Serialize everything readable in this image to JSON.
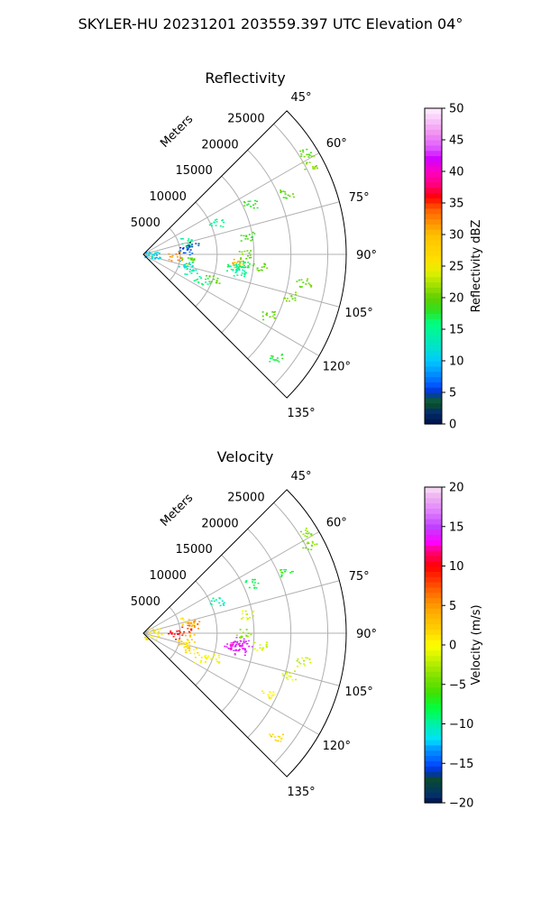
{
  "figure_title": "SKYLER-HU  20231201  203559.397 UTC Elevation 04°",
  "chart_data": [
    {
      "type": "polar-sector-scatter",
      "title": "Reflectivity",
      "radial_label": "Meters",
      "r_ticks": [
        "5000",
        "10000",
        "15000",
        "20000",
        "25000"
      ],
      "r_max": 27500,
      "theta_range_deg": [
        45,
        135
      ],
      "theta_ticks": [
        "45°",
        "60°",
        "75°",
        "90°",
        "105°",
        "120°",
        "135°"
      ],
      "grid": true,
      "colorbar": {
        "label": "Reflectivity dBZ",
        "range": [
          0,
          50
        ],
        "ticks": [
          "0",
          "5",
          "10",
          "15",
          "20",
          "25",
          "30",
          "35",
          "40",
          "45",
          "50"
        ]
      },
      "clusters": [
        {
          "az": 98,
          "r": 12000,
          "value": 16
        },
        {
          "az": 98,
          "r": 12800,
          "value": 14
        },
        {
          "az": 100,
          "r": 13200,
          "value": 15
        },
        {
          "az": 96,
          "r": 13800,
          "value": 17
        },
        {
          "az": 95,
          "r": 12600,
          "value": 30
        },
        {
          "az": 90,
          "r": 13500,
          "value": 20
        },
        {
          "az": 58,
          "r": 26000,
          "value": 20
        },
        {
          "az": 62,
          "r": 25500,
          "value": 21
        },
        {
          "az": 67,
          "r": 21000,
          "value": 20
        },
        {
          "az": 65,
          "r": 16000,
          "value": 18
        },
        {
          "az": 66,
          "r": 10800,
          "value": 15
        },
        {
          "az": 80,
          "r": 14300,
          "value": 19
        },
        {
          "az": 96,
          "r": 15800,
          "value": 20
        },
        {
          "az": 100,
          "r": 22000,
          "value": 20
        },
        {
          "az": 106,
          "r": 20500,
          "value": 20
        },
        {
          "az": 116,
          "r": 18800,
          "value": 20
        },
        {
          "az": 110,
          "r": 10000,
          "value": 19
        },
        {
          "az": 128,
          "r": 22700,
          "value": 18
        },
        {
          "az": 75,
          "r": 6200,
          "value": 15
        },
        {
          "az": 80,
          "r": 6800,
          "value": 5
        },
        {
          "az": 84,
          "r": 5700,
          "value": 6
        },
        {
          "az": 92,
          "r": 4200,
          "value": 32
        },
        {
          "az": 104,
          "r": 5800,
          "value": 12
        },
        {
          "az": 108,
          "r": 6700,
          "value": 14
        },
        {
          "az": 97,
          "r": 6000,
          "value": 20
        },
        {
          "az": 114,
          "r": 8500,
          "value": 16
        },
        {
          "az": 85,
          "r": 1500,
          "value": 13
        },
        {
          "az": 100,
          "r": 1100,
          "value": 10
        }
      ]
    },
    {
      "type": "polar-sector-scatter",
      "title": "Velocity",
      "radial_label": "Meters",
      "r_ticks": [
        "5000",
        "10000",
        "15000",
        "20000",
        "25000"
      ],
      "r_max": 27500,
      "theta_range_deg": [
        45,
        135
      ],
      "theta_ticks": [
        "45°",
        "60°",
        "75°",
        "90°",
        "105°",
        "120°",
        "135°"
      ],
      "grid": true,
      "colorbar": {
        "label": "Velocity (m/s)",
        "range": [
          -20,
          20
        ],
        "ticks": [
          "−20",
          "−15",
          "−10",
          "−5",
          "0",
          "5",
          "10",
          "15",
          "20"
        ]
      },
      "clusters": [
        {
          "az": 98,
          "r": 12000,
          "value": 14
        },
        {
          "az": 98,
          "r": 12800,
          "value": 14
        },
        {
          "az": 100,
          "r": 13200,
          "value": 14
        },
        {
          "az": 96,
          "r": 13800,
          "value": 14
        },
        {
          "az": 95,
          "r": 12600,
          "value": 14
        },
        {
          "az": 90,
          "r": 13500,
          "value": -4
        },
        {
          "az": 58,
          "r": 26000,
          "value": -4
        },
        {
          "az": 62,
          "r": 25500,
          "value": -4
        },
        {
          "az": 67,
          "r": 21000,
          "value": -7
        },
        {
          "az": 65,
          "r": 16000,
          "value": -8
        },
        {
          "az": 66,
          "r": 10800,
          "value": -10
        },
        {
          "az": 80,
          "r": 14300,
          "value": -1
        },
        {
          "az": 96,
          "r": 15800,
          "value": -1
        },
        {
          "az": 100,
          "r": 22000,
          "value": -2
        },
        {
          "az": 106,
          "r": 20500,
          "value": -1
        },
        {
          "az": 116,
          "r": 18800,
          "value": 0
        },
        {
          "az": 110,
          "r": 10000,
          "value": 0
        },
        {
          "az": 128,
          "r": 22700,
          "value": 2
        },
        {
          "az": 75,
          "r": 6200,
          "value": 1
        },
        {
          "az": 80,
          "r": 6800,
          "value": 6
        },
        {
          "az": 84,
          "r": 5700,
          "value": 8
        },
        {
          "az": 92,
          "r": 4200,
          "value": 10
        },
        {
          "az": 104,
          "r": 5800,
          "value": 2
        },
        {
          "az": 108,
          "r": 6700,
          "value": 1
        },
        {
          "az": 97,
          "r": 6000,
          "value": 2
        },
        {
          "az": 114,
          "r": 8500,
          "value": 1
        },
        {
          "az": 85,
          "r": 1500,
          "value": 0
        },
        {
          "az": 100,
          "r": 1100,
          "value": 1
        }
      ]
    }
  ]
}
